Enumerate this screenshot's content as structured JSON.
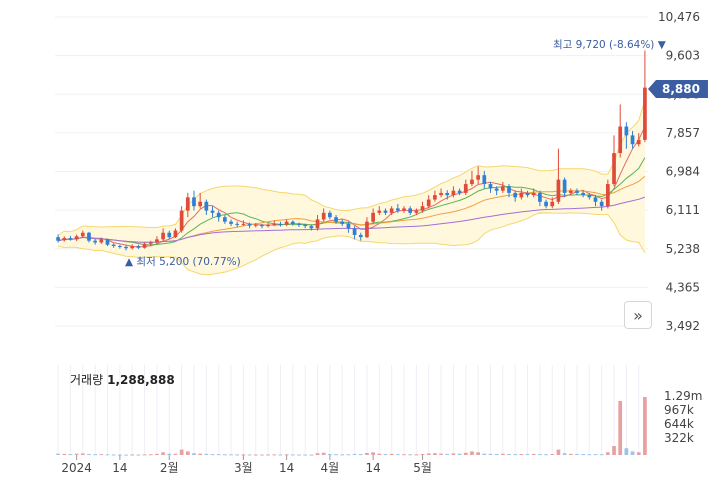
{
  "chart_data": {
    "type": "candlestick",
    "y_ticks": [
      "10,476",
      "9,603",
      "8,730",
      "7,857",
      "6,984",
      "6,111",
      "5,238",
      "4,365",
      "3,492"
    ],
    "x_ticks": [
      "2024",
      "14",
      "2월",
      "3월",
      "14",
      "4월",
      "14",
      "5월"
    ],
    "ylim": [
      3492,
      10476
    ],
    "high_annotation": {
      "label": "최고",
      "value": "9,720 (-8.64%)"
    },
    "low_annotation": {
      "label": "최저",
      "value": "5,200 (70.77%)"
    },
    "last_price": "8,880",
    "volume": {
      "label": "거래량",
      "value": "1,288,888",
      "ticks": [
        "1.29m",
        "967k",
        "644k",
        "322k"
      ],
      "max": 1290000
    },
    "candles": [
      [
        5500,
        5420,
        5560,
        5380
      ],
      [
        5430,
        5480,
        5520,
        5400
      ],
      [
        5480,
        5450,
        5530,
        5420
      ],
      [
        5450,
        5520,
        5560,
        5410
      ],
      [
        5520,
        5600,
        5650,
        5480
      ],
      [
        5600,
        5420,
        5620,
        5380
      ],
      [
        5420,
        5380,
        5460,
        5330
      ],
      [
        5380,
        5450,
        5490,
        5350
      ],
      [
        5450,
        5330,
        5470,
        5300
      ],
      [
        5330,
        5300,
        5360,
        5260
      ],
      [
        5300,
        5280,
        5330,
        5240
      ],
      [
        5280,
        5250,
        5320,
        5200
      ],
      [
        5250,
        5300,
        5340,
        5220
      ],
      [
        5300,
        5260,
        5330,
        5230
      ],
      [
        5260,
        5350,
        5380,
        5240
      ],
      [
        5350,
        5380,
        5420,
        5300
      ],
      [
        5380,
        5450,
        5520,
        5350
      ],
      [
        5450,
        5600,
        5700,
        5400
      ],
      [
        5600,
        5500,
        5650,
        5450
      ],
      [
        5500,
        5650,
        5700,
        5480
      ],
      [
        5650,
        6100,
        6200,
        5600
      ],
      [
        6100,
        6400,
        6500,
        5950
      ],
      [
        6400,
        6200,
        6550,
        6100
      ],
      [
        6200,
        6300,
        6500,
        6150
      ],
      [
        6300,
        6100,
        6350,
        6000
      ],
      [
        6100,
        6050,
        6200,
        5950
      ],
      [
        6050,
        5950,
        6100,
        5850
      ],
      [
        5950,
        5850,
        6000,
        5800
      ],
      [
        5850,
        5800,
        5900,
        5750
      ],
      [
        5800,
        5780,
        5850,
        5720
      ],
      [
        5780,
        5800,
        5880,
        5750
      ],
      [
        5800,
        5760,
        5830,
        5700
      ],
      [
        5760,
        5780,
        5820,
        5720
      ],
      [
        5780,
        5750,
        5800,
        5700
      ],
      [
        5750,
        5780,
        5820,
        5720
      ],
      [
        5780,
        5800,
        5880,
        5750
      ],
      [
        5800,
        5780,
        5850,
        5740
      ],
      [
        5780,
        5850,
        5900,
        5750
      ],
      [
        5850,
        5800,
        5880,
        5760
      ],
      [
        5800,
        5780,
        5830,
        5730
      ],
      [
        5780,
        5750,
        5800,
        5700
      ],
      [
        5750,
        5700,
        5780,
        5650
      ],
      [
        5700,
        5900,
        6000,
        5650
      ],
      [
        5900,
        6050,
        6150,
        5850
      ],
      [
        6050,
        5950,
        6100,
        5900
      ],
      [
        5950,
        5850,
        6000,
        5800
      ],
      [
        5850,
        5800,
        5900,
        5750
      ],
      [
        5800,
        5700,
        5850,
        5600
      ],
      [
        5700,
        5550,
        5750,
        5450
      ],
      [
        5550,
        5500,
        5600,
        5420
      ],
      [
        5500,
        5850,
        5950,
        5480
      ],
      [
        5850,
        6050,
        6150,
        5800
      ],
      [
        6050,
        6100,
        6200,
        6000
      ],
      [
        6100,
        6050,
        6150,
        6000
      ],
      [
        6050,
        6150,
        6200,
        6000
      ],
      [
        6150,
        6100,
        6250,
        6050
      ],
      [
        6100,
        6150,
        6200,
        6050
      ],
      [
        6150,
        6050,
        6200,
        6000
      ],
      [
        6050,
        6100,
        6150,
        6000
      ],
      [
        6100,
        6200,
        6300,
        6050
      ],
      [
        6200,
        6350,
        6450,
        6150
      ],
      [
        6350,
        6450,
        6550,
        6300
      ],
      [
        6450,
        6500,
        6600,
        6400
      ],
      [
        6500,
        6450,
        6560,
        6350
      ],
      [
        6450,
        6550,
        6650,
        6400
      ],
      [
        6550,
        6500,
        6600,
        6450
      ],
      [
        6500,
        6700,
        6800,
        6450
      ],
      [
        6700,
        6800,
        7000,
        6650
      ],
      [
        6800,
        6900,
        7100,
        6700
      ],
      [
        6900,
        6700,
        7000,
        6600
      ],
      [
        6700,
        6600,
        6750,
        6500
      ],
      [
        6600,
        6550,
        6650,
        6450
      ],
      [
        6550,
        6650,
        6750,
        6500
      ],
      [
        6650,
        6500,
        6700,
        6400
      ],
      [
        6500,
        6400,
        6550,
        6300
      ],
      [
        6400,
        6500,
        6600,
        6350
      ],
      [
        6500,
        6450,
        6550,
        6400
      ],
      [
        6450,
        6500,
        6600,
        6400
      ],
      [
        6500,
        6300,
        6550,
        6200
      ],
      [
        6300,
        6200,
        6350,
        6150
      ],
      [
        6200,
        6300,
        6400,
        6150
      ],
      [
        6300,
        6800,
        7500,
        6250
      ],
      [
        6800,
        6500,
        6850,
        6400
      ],
      [
        6500,
        6550,
        6600,
        6450
      ],
      [
        6550,
        6500,
        6600,
        6450
      ],
      [
        6500,
        6450,
        6550,
        6400
      ],
      [
        6450,
        6400,
        6500,
        6350
      ],
      [
        6400,
        6300,
        6450,
        6200
      ],
      [
        6300,
        6200,
        6350,
        6100
      ],
      [
        6200,
        6700,
        6800,
        6150
      ],
      [
        6700,
        7400,
        7800,
        6650
      ],
      [
        7400,
        8000,
        8500,
        7300
      ],
      [
        8000,
        7800,
        8100,
        7500
      ],
      [
        7800,
        7600,
        7900,
        7500
      ],
      [
        7600,
        7700,
        7850,
        7550
      ],
      [
        7700,
        8880,
        9720,
        7650
      ]
    ],
    "volumes": [
      30,
      25,
      20,
      28,
      35,
      22,
      18,
      20,
      15,
      12,
      10,
      9,
      12,
      10,
      14,
      16,
      25,
      60,
      30,
      28,
      120,
      80,
      40,
      30,
      25,
      20,
      18,
      15,
      14,
      12,
      14,
      12,
      11,
      10,
      12,
      14,
      12,
      16,
      12,
      10,
      10,
      9,
      40,
      50,
      22,
      18,
      14,
      16,
      24,
      20,
      45,
      60,
      30,
      22,
      25,
      20,
      18,
      16,
      15,
      22,
      35,
      40,
      30,
      25,
      35,
      28,
      50,
      80,
      60,
      30,
      25,
      22,
      28,
      22,
      18,
      22,
      20,
      25,
      20,
      18,
      22,
      120,
      40,
      25,
      22,
      20,
      18,
      20,
      18,
      60,
      200,
      1200,
      150,
      80,
      60,
      1288
    ]
  }
}
